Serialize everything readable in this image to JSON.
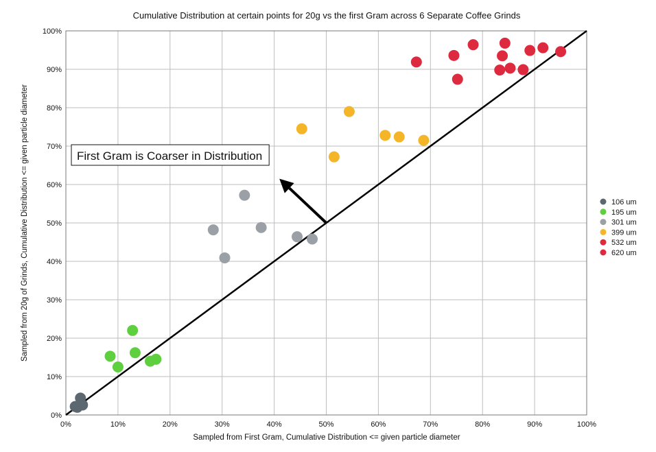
{
  "chart_data": {
    "type": "scatter",
    "title": "Cumulative Distribution at certain points for 20g vs the first Gram across 6 Separate Coffee Grinds",
    "xlabel": "Sampled from First Gram, Cumulative Distribution <= given particle diameter",
    "ylabel": "Sampled from 20g of Grinds, Cumulative Distribution <= given particle diameter",
    "xlim": [
      0,
      100
    ],
    "ylim": [
      0,
      100
    ],
    "x_ticks": [
      "0%",
      "10%",
      "20%",
      "30%",
      "40%",
      "50%",
      "60%",
      "70%",
      "80%",
      "90%",
      "100%"
    ],
    "y_ticks": [
      "0%",
      "10%",
      "20%",
      "30%",
      "40%",
      "50%",
      "60%",
      "70%",
      "80%",
      "90%",
      "100%"
    ],
    "grid": true,
    "legend_position": "right",
    "reference_line": {
      "x": [
        0,
        100
      ],
      "y": [
        0,
        100
      ],
      "color": "#000000"
    },
    "annotation": {
      "text": "First Gram is Coarser in Distribution",
      "arrow_from": [
        50,
        50
      ],
      "arrow_to": [
        41,
        61.5
      ]
    },
    "series": [
      {
        "name": "106 um",
        "color": "#5d6770",
        "points": [
          [
            1.8,
            2.2
          ],
          [
            2.2,
            2.0
          ],
          [
            2.6,
            2.5
          ],
          [
            2.8,
            4.4
          ],
          [
            3.2,
            2.6
          ]
        ]
      },
      {
        "name": "195 um",
        "color": "#5ecf3f",
        "points": [
          [
            8.5,
            15.3
          ],
          [
            10.0,
            12.5
          ],
          [
            12.8,
            22.0
          ],
          [
            13.3,
            16.2
          ],
          [
            16.2,
            14.0
          ],
          [
            17.3,
            14.5
          ]
        ]
      },
      {
        "name": "301 um",
        "color": "#9aa0a6",
        "points": [
          [
            28.3,
            48.2
          ],
          [
            30.5,
            40.9
          ],
          [
            34.3,
            57.2
          ],
          [
            37.5,
            48.8
          ],
          [
            44.4,
            46.4
          ],
          [
            47.3,
            45.8
          ]
        ]
      },
      {
        "name": "399 um",
        "color": "#f4b628",
        "points": [
          [
            45.3,
            74.5
          ],
          [
            51.5,
            67.2
          ],
          [
            54.4,
            79.0
          ],
          [
            61.3,
            72.8
          ],
          [
            64.0,
            72.4
          ],
          [
            68.7,
            71.5
          ]
        ]
      },
      {
        "name": "532 um",
        "color": "#de2a3f",
        "points": [
          [
            67.3,
            91.9
          ],
          [
            74.5,
            93.6
          ],
          [
            75.2,
            87.4
          ],
          [
            78.2,
            96.4
          ],
          [
            83.3,
            89.8
          ],
          [
            83.8,
            93.5
          ],
          [
            84.3,
            96.8
          ],
          [
            85.3,
            90.3
          ],
          [
            87.8,
            89.9
          ],
          [
            89.1,
            94.9
          ],
          [
            91.6,
            95.6
          ],
          [
            95.0,
            94.6
          ]
        ]
      },
      {
        "name": "620 um",
        "color": "#de2a3f",
        "points": []
      }
    ]
  }
}
